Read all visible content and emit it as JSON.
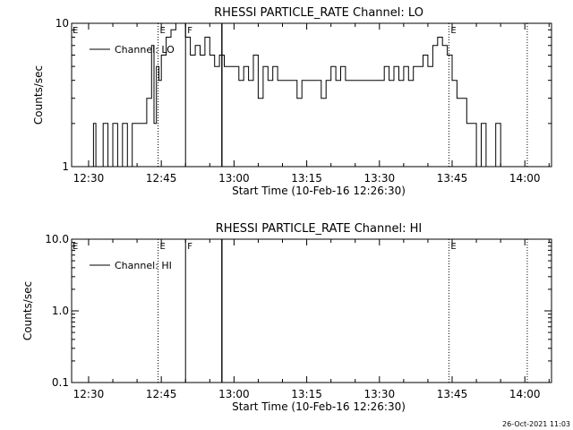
{
  "footer": {
    "timestamp": "26-Oct-2021 11:03"
  },
  "chart_data": [
    {
      "type": "line",
      "title": "RHESSI PARTICLE_RATE Channel: LO",
      "xlabel": "Start Time (10-Feb-16 12:26:30)",
      "ylabel": "Counts/sec",
      "yscale": "log",
      "ylim": [
        1,
        10
      ],
      "xlim": [
        "12:26:30",
        "14:05:30"
      ],
      "yticks": [
        "1",
        "10"
      ],
      "xticks": [
        "12:30",
        "12:45",
        "13:00",
        "13:15",
        "13:30",
        "13:45",
        "14:00"
      ],
      "legend": {
        "placement": "top-left",
        "entries": [
          "Channel: LO"
        ]
      },
      "markers": [
        {
          "time": "12:44:20",
          "label": "E",
          "style": "dotted"
        },
        {
          "time": "12:50:00",
          "label": "F",
          "style": "solid"
        },
        {
          "time": "12:57:30",
          "label": "",
          "style": "solid-thick"
        },
        {
          "time": "13:44:20",
          "label": "E",
          "style": "dotted"
        },
        {
          "time": "14:00:30",
          "label": "",
          "style": "dotted"
        }
      ],
      "series": [
        {
          "name": "Channel: LO",
          "x": [
            "12:30:00",
            "12:31:00",
            "12:31:30",
            "12:32:00",
            "12:33:00",
            "12:34:00",
            "12:34:30",
            "12:35:00",
            "12:36:00",
            "12:37:00",
            "12:38:00",
            "12:38:30",
            "12:39:00",
            "12:40:00",
            "12:41:00",
            "12:42:00",
            "12:43:00",
            "12:43:30",
            "12:44:00",
            "12:44:30",
            "12:45:00",
            "12:46:00",
            "12:47:00",
            "12:48:00",
            "12:48:30",
            "12:49:00",
            "12:50:00",
            "12:51:00",
            "12:52:00",
            "12:53:00",
            "12:54:00",
            "12:55:00",
            "12:56:00",
            "12:57:00",
            "12:58:00",
            "13:00:00",
            "13:01:00",
            "13:02:00",
            "13:03:00",
            "13:04:00",
            "13:05:00",
            "13:06:00",
            "13:07:00",
            "13:08:00",
            "13:09:00",
            "13:10:00",
            "13:11:00",
            "13:12:00",
            "13:13:00",
            "13:14:00",
            "13:15:00",
            "13:16:00",
            "13:17:00",
            "13:18:00",
            "13:19:00",
            "13:20:00",
            "13:21:00",
            "13:22:00",
            "13:23:00",
            "13:24:00",
            "13:25:00",
            "13:26:00",
            "13:27:00",
            "13:28:00",
            "13:29:00",
            "13:30:00",
            "13:31:00",
            "13:32:00",
            "13:33:00",
            "13:34:00",
            "13:35:00",
            "13:36:00",
            "13:37:00",
            "13:38:00",
            "13:39:00",
            "13:40:00",
            "13:41:00",
            "13:42:00",
            "13:43:00",
            "13:44:00",
            "13:44:30",
            "13:45:00",
            "13:46:00",
            "13:47:00",
            "13:48:00",
            "13:49:00",
            "13:50:00",
            "13:51:00",
            "13:52:00",
            "13:53:00",
            "13:54:00",
            "13:55:00",
            "13:56:00",
            "13:57:00",
            "13:58:00",
            "13:59:00",
            "14:00:00"
          ],
          "values": [
            1,
            2,
            1,
            1,
            2,
            1,
            1,
            2,
            1,
            2,
            1,
            1,
            2,
            2,
            2,
            3,
            7,
            2,
            5,
            4,
            6,
            8,
            9,
            10,
            10,
            10,
            8,
            6,
            7,
            6,
            8,
            6,
            5,
            6,
            5,
            5,
            4,
            5,
            4,
            6,
            3,
            5,
            4,
            5,
            4,
            4,
            4,
            4,
            3,
            4,
            4,
            4,
            4,
            3,
            4,
            5,
            4,
            5,
            4,
            4,
            4,
            4,
            4,
            4,
            4,
            4,
            5,
            4,
            5,
            4,
            5,
            4,
            5,
            5,
            6,
            5,
            7,
            8,
            7,
            6,
            6,
            4,
            3,
            3,
            2,
            2,
            1,
            2,
            1,
            1,
            2,
            1,
            1,
            1,
            1,
            1,
            1
          ]
        }
      ]
    },
    {
      "type": "line",
      "title": "RHESSI PARTICLE_RATE Channel: HI",
      "xlabel": "Start Time (10-Feb-16 12:26:30)",
      "ylabel": "Counts/sec",
      "yscale": "log",
      "ylim": [
        0.1,
        10
      ],
      "xlim": [
        "12:26:30",
        "14:05:30"
      ],
      "yticks": [
        "0.1",
        "1.0",
        "10.0"
      ],
      "xticks": [
        "12:30",
        "12:45",
        "13:00",
        "13:15",
        "13:30",
        "13:45",
        "14:00"
      ],
      "legend": {
        "placement": "top-left",
        "entries": [
          "Channel: HI"
        ]
      },
      "markers": [
        {
          "time": "12:44:20",
          "label": "E",
          "style": "dotted"
        },
        {
          "time": "12:50:00",
          "label": "F",
          "style": "solid"
        },
        {
          "time": "12:57:30",
          "label": "",
          "style": "solid-thick"
        },
        {
          "time": "13:44:20",
          "label": "E",
          "style": "dotted"
        },
        {
          "time": "14:00:30",
          "label": "",
          "style": "dotted"
        }
      ],
      "series": [
        {
          "name": "Channel: HI",
          "x": [],
          "values": []
        }
      ]
    }
  ]
}
